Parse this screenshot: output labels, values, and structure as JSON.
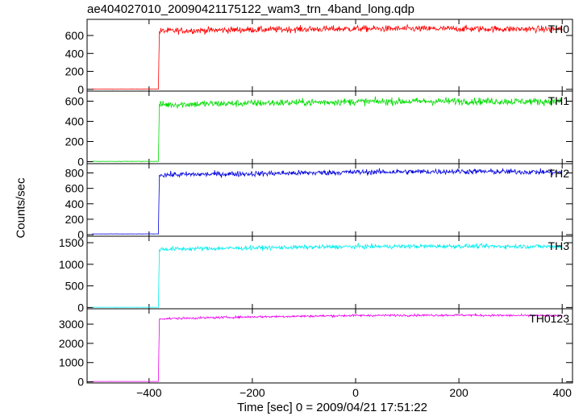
{
  "chart_data": [
    {
      "type": "line",
      "title": "ae404027010_20090421175122_wam3_trn_4band_long.qdp",
      "xlabel": "Time [sec] 0 = 2009/04/21 17:51:22",
      "ylabel": "Counts/sec",
      "xlim": [
        -520,
        420
      ],
      "x_ticks": [
        -400,
        -200,
        0,
        200,
        400
      ],
      "x_tick_labels": [
        "−400",
        "−200",
        "0",
        "200",
        "400"
      ],
      "panels": [
        {
          "name": "TH0",
          "color": "#ff0000",
          "ylim": [
            -20,
            780
          ],
          "y_ticks": [
            0,
            200,
            400,
            600
          ],
          "pre_level": 3,
          "step_x": -380,
          "start_level": 650,
          "end_level": 670,
          "noise": 25,
          "series_points": [
            [
              -510,
              3
            ],
            [
              -382,
              3
            ],
            [
              -380,
              650
            ],
            [
              -200,
              665
            ],
            [
              0,
              675
            ],
            [
              200,
              675
            ],
            [
              400,
              670
            ]
          ]
        },
        {
          "name": "TH1",
          "color": "#00dd00",
          "ylim": [
            -20,
            700
          ],
          "y_ticks": [
            0,
            200,
            400,
            600
          ],
          "pre_level": 3,
          "step_x": -380,
          "start_level": 565,
          "end_level": 600,
          "noise": 25,
          "series_points": [
            [
              -510,
              3
            ],
            [
              -382,
              3
            ],
            [
              -380,
              565
            ],
            [
              -200,
              580
            ],
            [
              0,
              595
            ],
            [
              200,
              600
            ],
            [
              400,
              595
            ]
          ]
        },
        {
          "name": "TH2",
          "color": "#0000dd",
          "ylim": [
            -20,
            920
          ],
          "y_ticks": [
            0,
            200,
            400,
            600,
            800
          ],
          "pre_level": 10,
          "step_x": -380,
          "start_level": 775,
          "end_level": 820,
          "noise": 25,
          "series_points": [
            [
              -510,
              10
            ],
            [
              -382,
              10
            ],
            [
              -380,
              775
            ],
            [
              -200,
              790
            ],
            [
              0,
              810
            ],
            [
              200,
              820
            ],
            [
              400,
              810
            ]
          ]
        },
        {
          "name": "TH3",
          "color": "#00eeee",
          "ylim": [
            -30,
            1650
          ],
          "y_ticks": [
            0,
            500,
            1000,
            1500
          ],
          "pre_level": 5,
          "step_x": -380,
          "start_level": 1350,
          "end_level": 1420,
          "noise": 35,
          "series_points": [
            [
              -510,
              5
            ],
            [
              -382,
              5
            ],
            [
              -380,
              1350
            ],
            [
              -200,
              1380
            ],
            [
              0,
              1410
            ],
            [
              200,
              1420
            ],
            [
              400,
              1410
            ]
          ]
        },
        {
          "name": "TH0123",
          "color": "#ee00ee",
          "ylim": [
            -60,
            3800
          ],
          "y_ticks": [
            0,
            1000,
            2000,
            3000
          ],
          "pre_level": 20,
          "step_x": -380,
          "start_level": 3280,
          "end_level": 3450,
          "noise": 40,
          "series_points": [
            [
              -510,
              20
            ],
            [
              -382,
              20
            ],
            [
              -380,
              3280
            ],
            [
              -200,
              3380
            ],
            [
              0,
              3450
            ],
            [
              200,
              3470
            ],
            [
              400,
              3430
            ]
          ]
        }
      ]
    }
  ]
}
